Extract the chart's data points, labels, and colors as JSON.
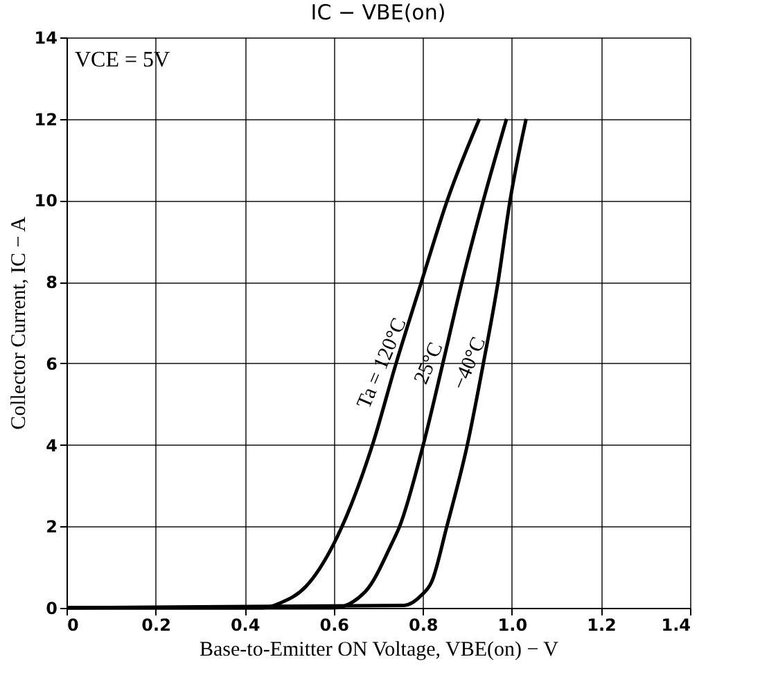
{
  "chart_data": {
    "type": "line",
    "title": "IC  −  VBE(on)",
    "xlabel": "Base-to-Emitter ON Voltage, VBE(on) − V",
    "ylabel": "Collector Current, IC − A",
    "annotations": [
      "VCE = 5V"
    ],
    "xlim": [
      0,
      1.4
    ],
    "ylim": [
      0,
      14
    ],
    "xticks": [
      0,
      0.2,
      0.4,
      0.6,
      0.8,
      {
        "value": 1,
        "label": "1.0"
      },
      1.2,
      1.4
    ],
    "yticks": [
      0,
      2,
      4,
      6,
      8,
      10,
      12,
      14
    ],
    "grid": true,
    "legend": false,
    "marker": "none",
    "line_style": "solid",
    "series": [
      {
        "name": "Ta = 120°C",
        "color": "#000000",
        "x": [
          0,
          0.44,
          0.48,
          0.538,
          0.6,
          0.687,
          0.74,
          0.797,
          0.855,
          0.927
        ],
        "values": [
          0,
          0,
          0.12,
          0.53,
          1.57,
          4.0,
          6.0,
          8.0,
          10.0,
          12.0
        ]
      },
      {
        "name": "25°C",
        "color": "#000000",
        "x": [
          0,
          0.6,
          0.671,
          0.73,
          0.748,
          0.801,
          0.845,
          0.888,
          0.936,
          0.988
        ],
        "values": [
          0,
          0,
          0.4,
          1.57,
          2.0,
          4.0,
          6.0,
          8.0,
          10.0,
          12.0
        ]
      },
      {
        "name": "−40°C",
        "color": "#000000",
        "x": [
          0,
          0.758,
          0.796,
          0.82,
          0.854,
          0.9,
          0.936,
          0.969,
          0.996,
          1.032
        ],
        "values": [
          0,
          0.06,
          0.3,
          0.64,
          2.0,
          4.0,
          6.0,
          8.0,
          10.0,
          12.0
        ]
      }
    ]
  }
}
